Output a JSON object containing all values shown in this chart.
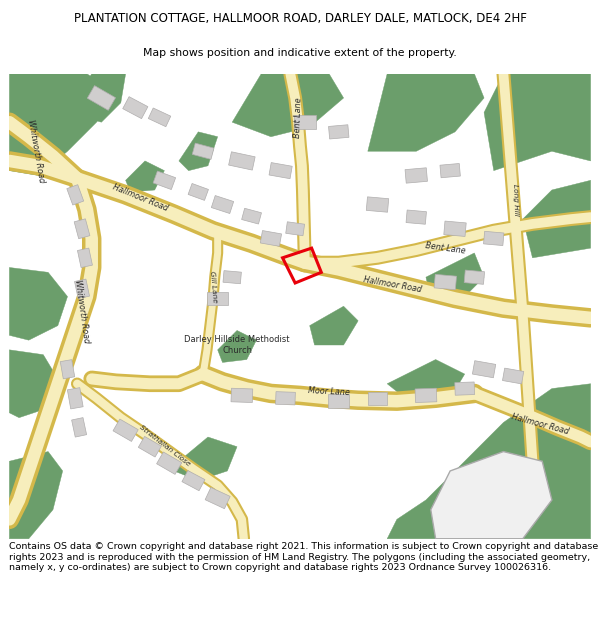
{
  "title_line1": "PLANTATION COTTAGE, HALLMOOR ROAD, DARLEY DALE, MATLOCK, DE4 2HF",
  "title_line2": "Map shows position and indicative extent of the property.",
  "footer_text": "Contains OS data © Crown copyright and database right 2021. This information is subject to Crown copyright and database rights 2023 and is reproduced with the permission of HM Land Registry. The polygons (including the associated geometry, namely x, y co-ordinates) are subject to Crown copyright and database rights 2023 Ordnance Survey 100026316.",
  "bg_color": "#ffffff",
  "map_bg": "#ffffff",
  "green_color": "#6b9e6b",
  "road_fill": "#f7eebc",
  "road_edge": "#d4b84a",
  "building_color": "#d0cece",
  "building_edge": "#b0aeae",
  "plot_color": "#e8000a",
  "text_color": "#2a2a2a",
  "title_fontsize": 8.5,
  "subtitle_fontsize": 7.8,
  "footer_fontsize": 6.8,
  "label_fontsize": 5.8
}
